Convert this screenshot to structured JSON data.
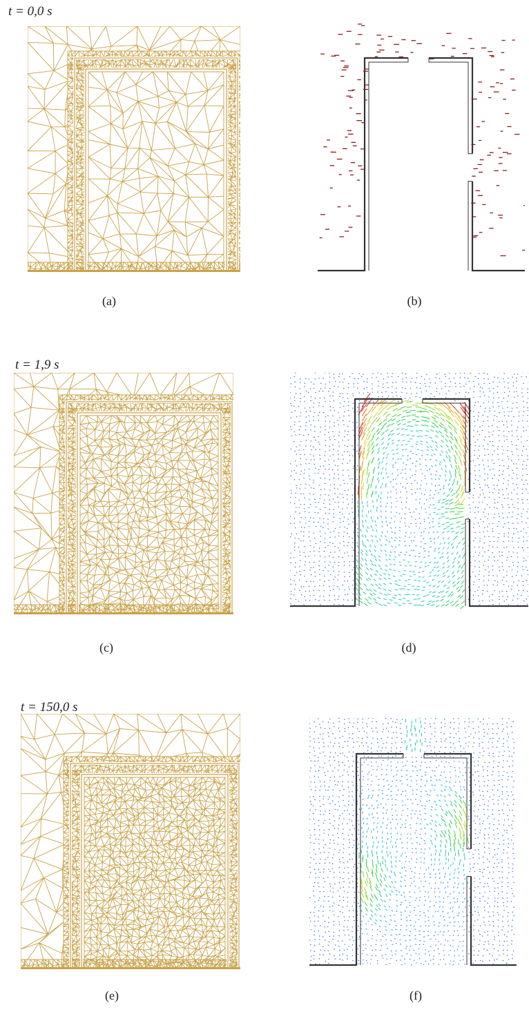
{
  "figure": {
    "rows": [
      {
        "time_label": "t = 0,0 s",
        "mesh_caption": "(a)",
        "flow_caption": "(b)"
      },
      {
        "time_label": "t = 1,9 s",
        "mesh_caption": "(c)",
        "flow_caption": "(d)"
      },
      {
        "time_label": "t = 150,0 s",
        "mesh_caption": "(e)",
        "flow_caption": "(f)"
      }
    ],
    "colors": {
      "mesh": "#c9a24a",
      "wall": "#333333",
      "vectors_initial": "#8b1a1a",
      "velocity_low": "#1a3cff",
      "velocity_high": "#e01010"
    }
  }
}
